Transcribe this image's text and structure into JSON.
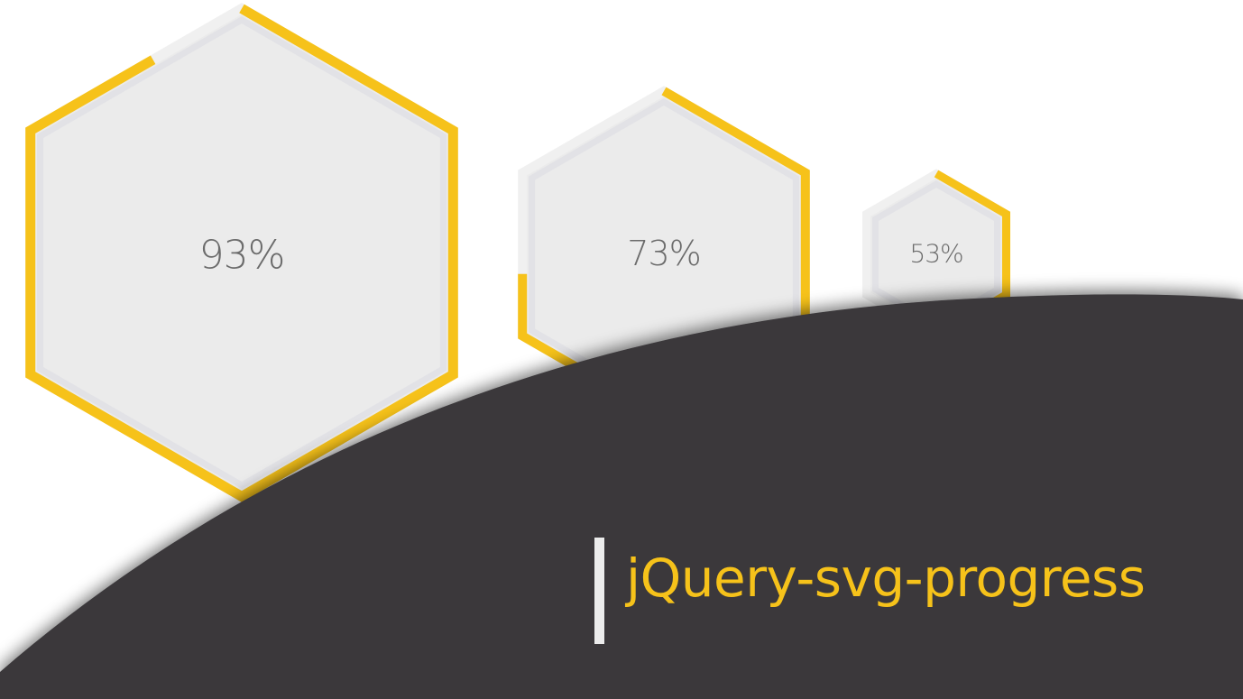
{
  "colors": {
    "accent": "#f6c21a",
    "hex_fill": "#ebebeb",
    "hex_inner_border": "#e2e2e6",
    "track": "#f0f0f0",
    "text": "#6b6b6b",
    "curve_bg": "#3a383b",
    "title_bar": "#ececec"
  },
  "progress": [
    {
      "label": "93%",
      "value": 93
    },
    {
      "label": "73%",
      "value": 73
    },
    {
      "label": "53%",
      "value": 53
    }
  ],
  "title": "jQuery-svg-progress"
}
